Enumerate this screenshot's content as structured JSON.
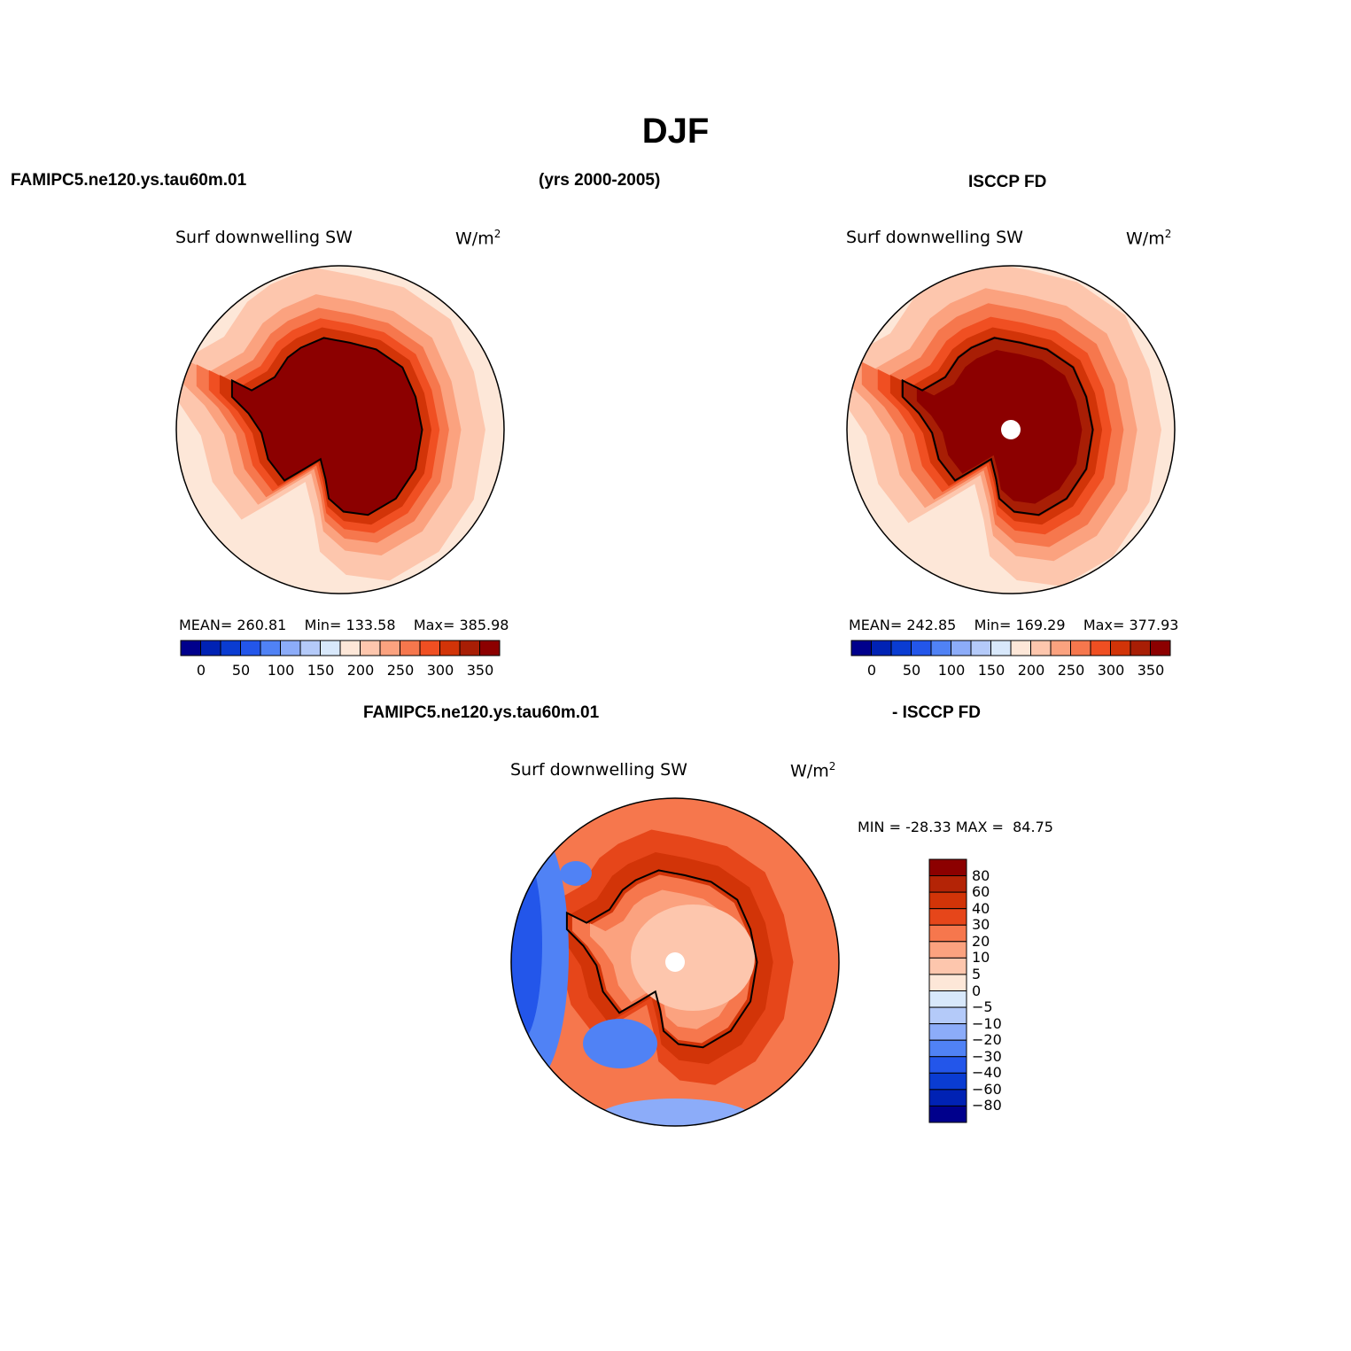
{
  "figure": {
    "title": "DJF",
    "top_left_case": "FAMIPC5.ne120.ys.tau60m.01",
    "years": "(yrs 2000-2005)",
    "top_right_case": "ISCCP FD",
    "diff_case_left": "FAMIPC5.ne120.ys.tau60m.01",
    "diff_case_right": "- ISCCP FD"
  },
  "colors": {
    "abs_levels": [
      "#00008c",
      "#0022b4",
      "#0a3cd2",
      "#2356ea",
      "#5082f5",
      "#8cacf9",
      "#b4caf9",
      "#d8e8fb",
      "#fde7d8",
      "#fdc6ad",
      "#fba27f",
      "#f6774d",
      "#f04f22",
      "#d23408",
      "#a81e05",
      "#8c0000"
    ],
    "diff_levels": [
      "#8c0000",
      "#b42406",
      "#d23408",
      "#e6461a",
      "#f6774d",
      "#fba27f",
      "#fdc6ad",
      "#fde7d8",
      "#d8e8fb",
      "#b4caf9",
      "#8cacf9",
      "#5082f5",
      "#2356ea",
      "#0a3cd2",
      "#0022b4",
      "#00008c"
    ]
  },
  "chart_data": [
    {
      "type": "heatmap",
      "projection": "south-polar-stereographic",
      "case": "FAMIPC5.ne120.ys.tau60m.01",
      "title": "Surf downwelling SW",
      "units": "W/m",
      "units_sup": "2",
      "stats": {
        "mean_label": "MEAN=",
        "mean": "260.81",
        "min_label": "Min=",
        "min": "133.58",
        "max_label": "Max=",
        "max": "385.98"
      },
      "colorbar_ticks": [
        "0",
        "50",
        "100",
        "150",
        "200",
        "250",
        "300",
        "350"
      ],
      "contours": [
        {
          "level": 8,
          "scale": 1.0
        },
        {
          "level": 9,
          "scale": 0.8
        },
        {
          "level": 10,
          "scale": 0.62
        },
        {
          "level": 11,
          "scale": 0.53
        },
        {
          "level": 12,
          "scale": 0.46
        },
        {
          "level": 13,
          "scale": 0.4
        },
        {
          "level": 15,
          "scale": 0.33
        }
      ]
    },
    {
      "type": "heatmap",
      "projection": "south-polar-stereographic",
      "case": "ISCCP FD",
      "title": "Surf downwelling SW",
      "units": "W/m",
      "units_sup": "2",
      "stats": {
        "mean_label": "MEAN=",
        "mean": "242.85",
        "min_label": "Min=",
        "min": "169.29",
        "max_label": "Max=",
        "max": "377.93"
      },
      "colorbar_ticks": [
        "0",
        "50",
        "100",
        "150",
        "200",
        "250",
        "300",
        "350"
      ],
      "contours": [
        {
          "level": 8,
          "scale": 1.0
        },
        {
          "level": 9,
          "scale": 0.84
        },
        {
          "level": 10,
          "scale": 0.66
        },
        {
          "level": 11,
          "scale": 0.56
        },
        {
          "level": 12,
          "scale": 0.47
        },
        {
          "level": 13,
          "scale": 0.4
        },
        {
          "level": 14,
          "scale": 0.34
        },
        {
          "level": 15,
          "scale": 0.25
        }
      ]
    },
    {
      "type": "heatmap",
      "projection": "south-polar-stereographic",
      "case": "FAMIPC5.ne120.ys.tau60m.01 - ISCCP FD",
      "title": "Surf downwelling SW",
      "units": "W/m",
      "units_sup": "2",
      "stats": {
        "min_label": "MIN =",
        "min": "-28.33",
        "max_label": "MAX =",
        "max": "84.75"
      },
      "colorbar_ticks": [
        "80",
        "60",
        "40",
        "30",
        "20",
        "10",
        "5",
        "0",
        "-5",
        "-10",
        "-20",
        "-30",
        "-40",
        "-60",
        "-80"
      ],
      "contours": [
        {
          "level": 4,
          "scale": 1.0
        },
        {
          "level": 3,
          "scale": 0.6
        },
        {
          "level": 2,
          "scale": 0.45
        },
        {
          "level": 4,
          "scale": 0.3
        },
        {
          "level": 5,
          "scale": 0.2
        }
      ]
    }
  ]
}
